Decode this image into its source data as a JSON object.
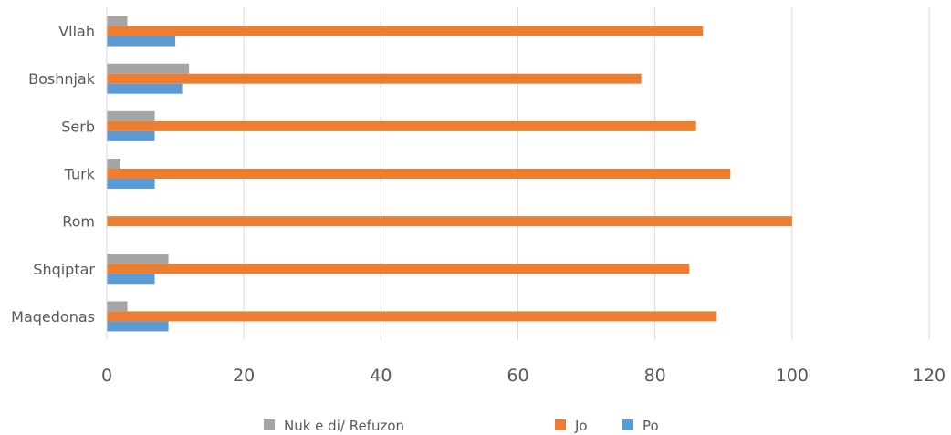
{
  "chart_data": {
    "type": "bar",
    "orientation": "horizontal",
    "title": "",
    "xlabel": "",
    "ylabel": "",
    "categories": [
      "Vllah",
      "Boshnjak",
      "Serb",
      "Turk",
      "Rom",
      "Shqiptar",
      "Maqedonas"
    ],
    "series": [
      {
        "name": "Nuk e di/ Refuzon",
        "color": "#a5a5a5",
        "values": [
          3,
          12,
          7,
          2,
          0,
          9,
          3
        ]
      },
      {
        "name": "Jo",
        "color": "#ed7d31",
        "values": [
          87,
          78,
          86,
          91,
          100,
          85,
          89
        ]
      },
      {
        "name": "Po",
        "color": "#5b9bd5",
        "values": [
          10,
          11,
          7,
          7,
          0,
          7,
          9
        ]
      }
    ],
    "xlim": [
      0,
      120
    ],
    "xticks": [
      "0",
      "20",
      "40",
      "60",
      "80",
      "100",
      "120"
    ],
    "grid": true,
    "legend_position": "bottom"
  }
}
